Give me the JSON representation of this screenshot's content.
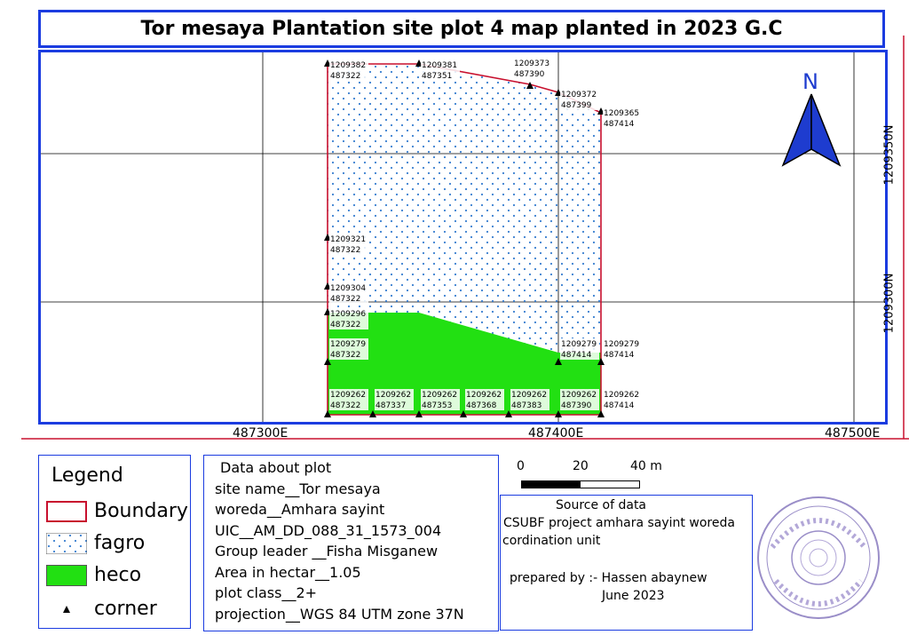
{
  "title": "Tor mesaya Plantation site plot 4 map planted in 2023 G.C",
  "map": {
    "y_ticks": [
      "1209350N",
      "1209300N"
    ],
    "x_ticks": [
      "487300E",
      "487400E",
      "487500E"
    ],
    "north_label": "N",
    "colors": {
      "boundary": "#c8102e",
      "fagro": "#3a7fd0",
      "heco": "#22e012",
      "frame": "#1b3ce0"
    },
    "corners": [
      {
        "y": "1209382",
        "x": "487322"
      },
      {
        "y": "1209381",
        "x": "487351"
      },
      {
        "y": "1209373",
        "x": "487390"
      },
      {
        "y": "1209372",
        "x": "487399"
      },
      {
        "y": "1209365",
        "x": "487414"
      },
      {
        "y": "1209321",
        "x": "487322"
      },
      {
        "y": "1209304",
        "x": "487322"
      },
      {
        "y": "1209296",
        "x": "487322"
      },
      {
        "y": "1209279",
        "x": "487322"
      },
      {
        "y": "1209279",
        "x": "487414"
      },
      {
        "y": "1209279",
        "x": "487414"
      },
      {
        "y": "1209262",
        "x": "487322"
      },
      {
        "y": "1209262",
        "x": "487337"
      },
      {
        "y": "1209262",
        "x": "487353"
      },
      {
        "y": "1209262",
        "x": "487368"
      },
      {
        "y": "1209262",
        "x": "487383"
      },
      {
        "y": "1209262",
        "x": "487390"
      },
      {
        "y": "1209262",
        "x": "487414"
      }
    ]
  },
  "legend": {
    "title": "Legend",
    "items": [
      {
        "label": "Boundary"
      },
      {
        "label": "fagro"
      },
      {
        "label": "heco"
      },
      {
        "label": "corner"
      }
    ]
  },
  "info": {
    "heading": "Data about plot",
    "lines": [
      "site name__Tor mesaya",
      "woreda__Amhara sayint",
      "UIC__AM_DD_088_31_1573_004",
      "Group leader __Fisha Misganew",
      "Area in hectar__1.05",
      "plot class__2+",
      "projection__WGS 84 UTM zone 37N"
    ]
  },
  "scale": {
    "labels": [
      "0",
      "20",
      "40 m"
    ]
  },
  "source": {
    "title": "Source of data",
    "line1": "CSUBF project amhara sayint woreda",
    "line2": "cordination unit",
    "prepared": "prepared by :- Hassen abaynew",
    "date": "June 2023"
  }
}
